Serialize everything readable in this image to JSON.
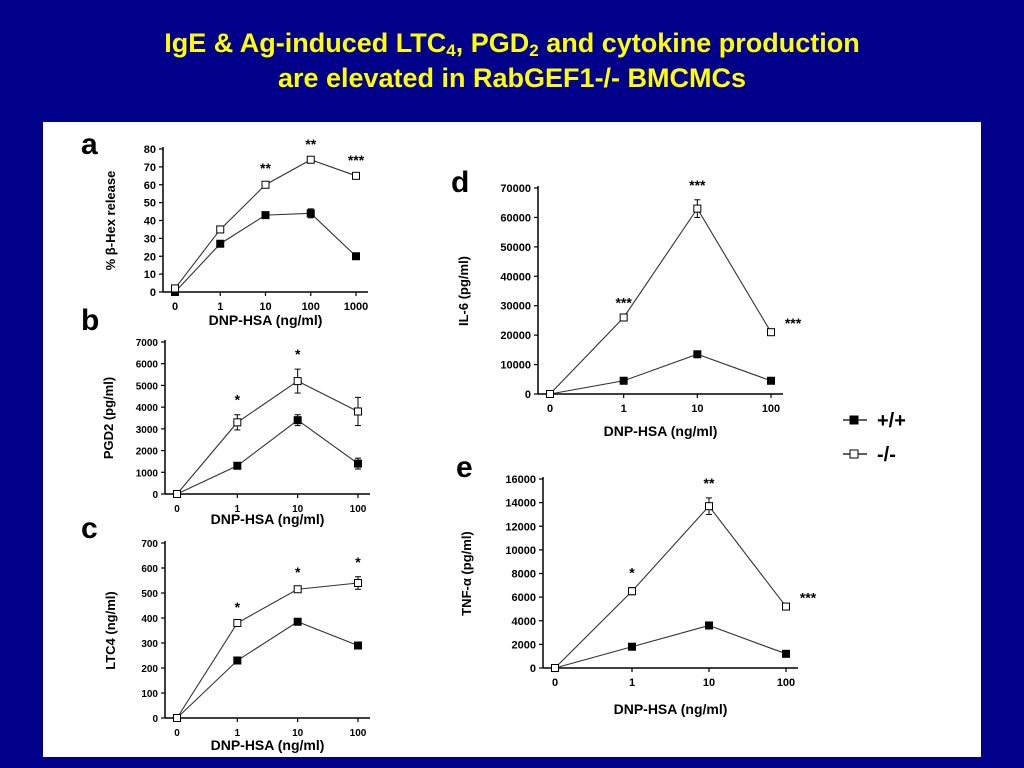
{
  "title": {
    "line1_a": "IgE & Ag-induced LTC",
    "line1_sub1": "4",
    "line1_b": ", PGD",
    "line1_sub2": "2",
    "line1_c": " and cytokine production",
    "line2": "are elevated in RabGEF1-/- BMCMCs"
  },
  "colors": {
    "background": "#00008B",
    "title": "#FFFF00",
    "panel": "#FFFFFF",
    "ink": "#000000"
  },
  "legend": {
    "items": [
      {
        "label": "+/+",
        "marker": "filled-square"
      },
      {
        "label": "-/-",
        "marker": "open-square"
      }
    ]
  },
  "chart_data": [
    {
      "panel_letter": "a",
      "type": "line",
      "xlabel": "DNP-HSA (ng/ml)",
      "ylabel": "% β-Hex release",
      "categories": [
        "0",
        "1",
        "10",
        "100",
        "1000"
      ],
      "ylim": [
        0,
        80
      ],
      "yticks": [
        "0",
        "10",
        "20",
        "30",
        "40",
        "50",
        "60",
        "70",
        "80"
      ],
      "series": [
        {
          "name": "+/+",
          "values": [
            0,
            27,
            43,
            44,
            20
          ],
          "err": [
            0,
            1,
            1.5,
            2.5,
            0
          ]
        },
        {
          "name": "-/-",
          "values": [
            2,
            35,
            60,
            74,
            65
          ],
          "err": [
            0,
            1.5,
            1,
            0.5,
            0.5
          ]
        }
      ],
      "significance": [
        "",
        "",
        "**",
        "**",
        "***"
      ]
    },
    {
      "panel_letter": "b",
      "type": "line",
      "xlabel": "DNP-HSA (ng/ml)",
      "ylabel": "PGD2 (pg/ml)",
      "categories": [
        "0",
        "1",
        "10",
        "100"
      ],
      "ylim": [
        0,
        7000
      ],
      "yticks": [
        "0",
        "1000",
        "2000",
        "3000",
        "4000",
        "5000",
        "6000",
        "7000"
      ],
      "series": [
        {
          "name": "+/+",
          "values": [
            0,
            1300,
            3400,
            1400
          ],
          "err": [
            0,
            0,
            250,
            250
          ]
        },
        {
          "name": "-/-",
          "values": [
            0,
            3300,
            5200,
            3800
          ],
          "err": [
            0,
            350,
            550,
            650
          ]
        }
      ],
      "significance": [
        "",
        "*",
        "*",
        ""
      ]
    },
    {
      "panel_letter": "c",
      "type": "line",
      "xlabel": "DNP-HSA (ng/ml)",
      "ylabel": "LTC4 (ng/ml)",
      "categories": [
        "0",
        "1",
        "10",
        "100"
      ],
      "ylim": [
        0,
        700
      ],
      "yticks": [
        "0",
        "100",
        "200",
        "300",
        "400",
        "500",
        "600",
        "700"
      ],
      "series": [
        {
          "name": "+/+",
          "values": [
            0,
            230,
            385,
            290
          ],
          "err": [
            0,
            0,
            0,
            0
          ]
        },
        {
          "name": "-/-",
          "values": [
            0,
            380,
            515,
            540
          ],
          "err": [
            0,
            5,
            10,
            25
          ]
        }
      ],
      "significance": [
        "",
        "*",
        "*",
        "*"
      ]
    },
    {
      "panel_letter": "d",
      "type": "line",
      "xlabel": "DNP-HSA (ng/ml)",
      "ylabel": "IL-6 (pg/ml)",
      "categories": [
        "0",
        "1",
        "10",
        "100"
      ],
      "ylim": [
        0,
        70000
      ],
      "yticks": [
        "0",
        "10000",
        "20000",
        "30000",
        "40000",
        "50000",
        "60000",
        "70000"
      ],
      "series": [
        {
          "name": "+/+",
          "values": [
            0,
            4500,
            13500,
            4500
          ],
          "err": [
            0,
            0,
            0,
            0
          ]
        },
        {
          "name": "-/-",
          "values": [
            0,
            26000,
            63000,
            21000
          ],
          "err": [
            0,
            0,
            3000,
            0
          ]
        }
      ],
      "significance": [
        "",
        "***",
        "***",
        "***"
      ]
    },
    {
      "panel_letter": "e",
      "type": "line",
      "xlabel": "DNP-HSA (ng/ml)",
      "ylabel": "TNF-α (pg/ml)",
      "categories": [
        "0",
        "1",
        "10",
        "100"
      ],
      "ylim": [
        0,
        16000
      ],
      "yticks": [
        "0",
        "2000",
        "4000",
        "6000",
        "8000",
        "10000",
        "12000",
        "14000",
        "16000"
      ],
      "series": [
        {
          "name": "+/+",
          "values": [
            0,
            1800,
            3600,
            1200
          ],
          "err": [
            0,
            0,
            0,
            0
          ]
        },
        {
          "name": "-/-",
          "values": [
            0,
            6500,
            13700,
            5200
          ],
          "err": [
            0,
            300,
            700,
            0
          ]
        }
      ],
      "significance": [
        "",
        "*",
        "**",
        "***"
      ]
    }
  ]
}
